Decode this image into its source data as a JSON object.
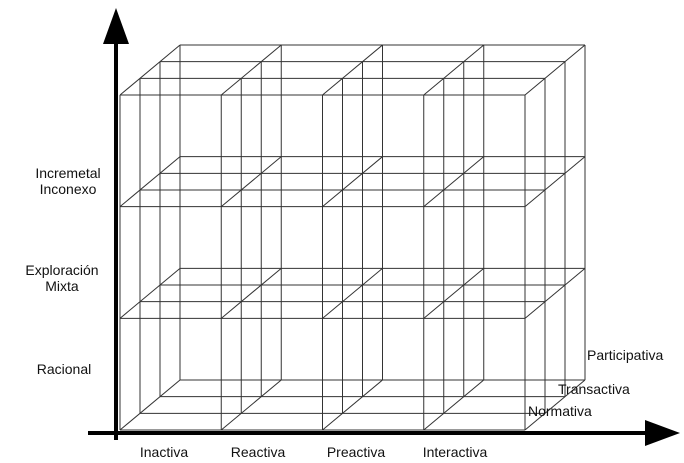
{
  "y_axis": {
    "labels": [
      [
        "Incremetal",
        "Inconexo"
      ],
      [
        "Exploración",
        "Mixta"
      ],
      [
        "Racional"
      ]
    ]
  },
  "x_axis": {
    "labels": [
      "Inactiva",
      "Reactiva",
      "Preactiva",
      "Interactiva"
    ]
  },
  "z_axis": {
    "labels": [
      "Participativa",
      "Transactiva",
      "Normativa"
    ]
  }
}
